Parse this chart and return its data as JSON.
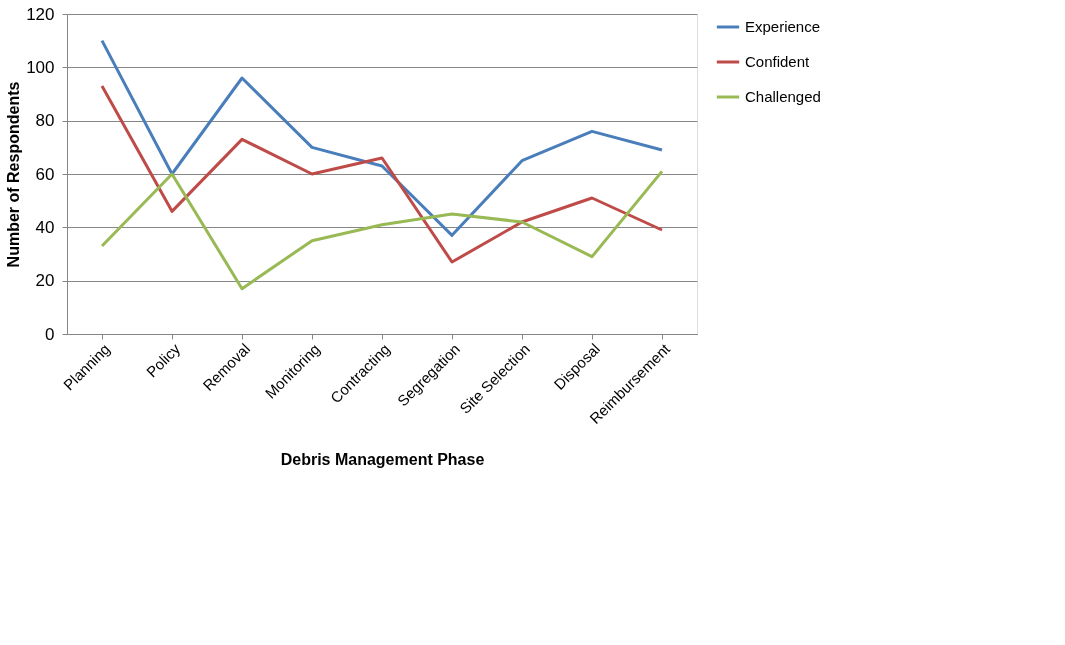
{
  "chart_data": {
    "type": "line",
    "xlabel": "Debris Management Phase",
    "ylabel": "Number of Respondents",
    "categories": [
      "Planning",
      "Policy",
      "Removal",
      "Monitoring",
      "Contracting",
      "Segregation",
      "Site Selection",
      "Disposal",
      "Reimbursement"
    ],
    "series": [
      {
        "name": "Experience",
        "color": "#4a7ebb",
        "values": [
          110,
          60,
          96,
          70,
          63,
          37,
          65,
          76,
          69
        ]
      },
      {
        "name": "Confident",
        "color": "#be4b48",
        "values": [
          93,
          46,
          73,
          60,
          66,
          27,
          42,
          51,
          39
        ]
      },
      {
        "name": "Challenged",
        "color": "#98b954",
        "values": [
          33,
          60,
          17,
          35,
          41,
          45,
          42,
          29,
          61
        ]
      }
    ],
    "ylim": [
      0,
      120
    ],
    "yticks": [
      0,
      20,
      40,
      60,
      80,
      100,
      120
    ],
    "grid": "y",
    "legend": "right",
    "marker": "none",
    "line_style": "solid"
  }
}
